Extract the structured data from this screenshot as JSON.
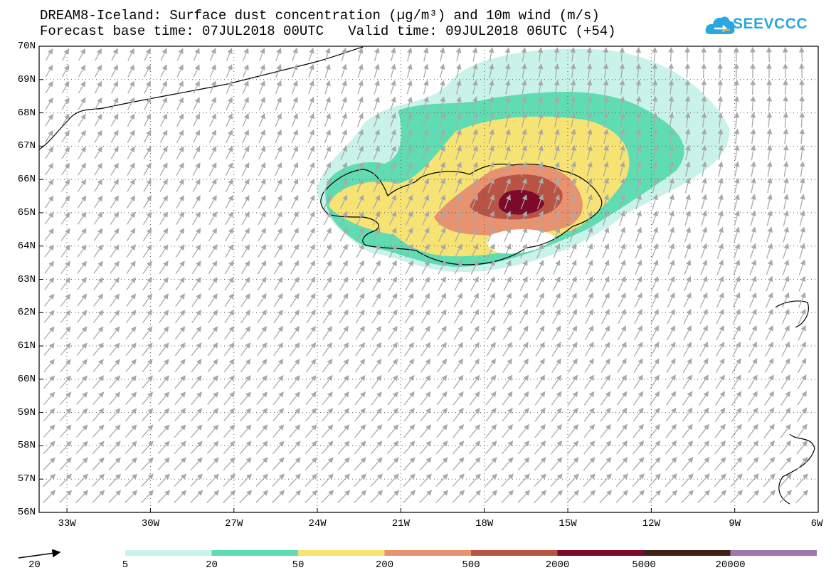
{
  "title_line1": "DREAM8-Iceland: Surface dust concentration (µg/m³) and 10m wind (m/s)",
  "title_line2": "Forecast base time: 07JUL2018 00UTC   Valid time: 09JUL2018 06UTC (+54)",
  "logo_text": "SEEVCCC",
  "map": {
    "lat_range": [
      56,
      70
    ],
    "lon_range": [
      -34,
      -6
    ],
    "lat_labels": [
      "70N",
      "69N",
      "68N",
      "67N",
      "66N",
      "65N",
      "64N",
      "63N",
      "62N",
      "61N",
      "60N",
      "59N",
      "58N",
      "57N",
      "56N"
    ],
    "lon_labels": [
      "33W",
      "30W",
      "27W",
      "24W",
      "21W",
      "18W",
      "15W",
      "12W",
      "9W",
      "6W"
    ],
    "wind_vector_color": "#aaaaaa",
    "coastline_color": "#000000"
  },
  "wind_legend": {
    "reference_speed": "20"
  },
  "colorbar": {
    "levels": [
      "5",
      "20",
      "50",
      "200",
      "500",
      "2000",
      "5000",
      "20000"
    ],
    "colors": [
      "#c8f2ea",
      "#5fdcb2",
      "#f6e373",
      "#e99270",
      "#b95445",
      "#7d0a2a",
      "#3c2313",
      "#9e78a8"
    ]
  }
}
